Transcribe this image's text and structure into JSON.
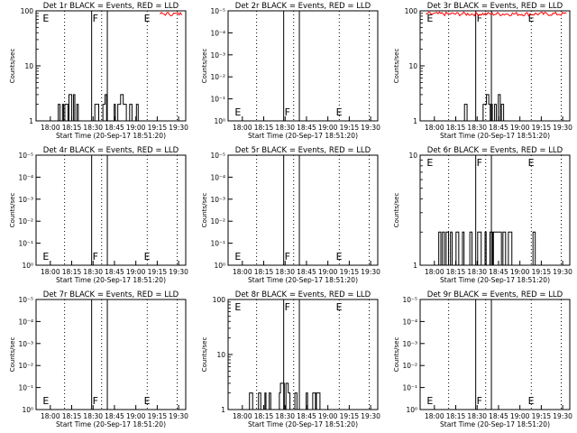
{
  "figure": {
    "ylabel": "Counts/sec",
    "xlabel": "Start Time (20-Sep-17 18:51:20)",
    "x_ticks": [
      "18:00",
      "18:15",
      "18:30",
      "18:45",
      "19:00",
      "19:15",
      "19:30"
    ],
    "event_markers": [
      {
        "label": "E",
        "time": "17:54"
      },
      {
        "label": "F",
        "time": "18:29"
      },
      {
        "label": "E",
        "time": "19:05"
      }
    ],
    "dotted_lines": [
      "18:10",
      "18:36",
      "19:08",
      "19:29"
    ],
    "solid_lines": [
      "18:29",
      "18:40"
    ],
    "colors": {
      "events": "#000000",
      "lld": "#ff0000"
    }
  },
  "chart_data": [
    {
      "type": "line",
      "title": "Det 1r BLACK = Events, RED = LLD",
      "scale": "log",
      "ylim": [
        1,
        100
      ],
      "y_ticks": [
        "1",
        "10",
        "100"
      ],
      "events_level": [
        1,
        3
      ],
      "lld_level": 95,
      "events_span": [
        "18:00",
        "19:02"
      ],
      "lld_span": [
        "19:17",
        "19:33"
      ]
    },
    {
      "type": "line",
      "title": "Det 2r BLACK = Events, RED = LLD",
      "scale": "empty",
      "y_ticks": [
        "10⁰",
        "10⁻¹",
        "10⁻²",
        "10⁻³",
        "10⁻⁴",
        "10⁻⁵"
      ]
    },
    {
      "type": "line",
      "title": "Det 3r BLACK = Events, RED = LLD",
      "scale": "log",
      "ylim": [
        1,
        100
      ],
      "y_ticks": [
        "1",
        "10",
        "100"
      ],
      "events_level": [
        1,
        3
      ],
      "lld_level": 95,
      "events_span": [
        "18:19",
        "18:50"
      ],
      "lld_span": [
        "17:54",
        "19:33"
      ]
    },
    {
      "type": "line",
      "title": "Det 4r BLACK = Events, RED = LLD",
      "scale": "empty",
      "y_ticks": [
        "10⁰",
        "10⁻¹",
        "10⁻²",
        "10⁻³",
        "10⁻⁴",
        "10⁻⁵"
      ]
    },
    {
      "type": "line",
      "title": "Det 5r BLACK = Events, RED = LLD",
      "scale": "empty",
      "y_ticks": [
        "10⁰",
        "10⁻¹",
        "10⁻²",
        "10⁻³",
        "10⁻⁴",
        "10⁻⁵"
      ]
    },
    {
      "type": "line",
      "title": "Det 6r BLACK = Events, RED = LLD",
      "scale": "log",
      "ylim": [
        1,
        10
      ],
      "y_ticks": [
        "1",
        "10"
      ],
      "events_level": [
        1,
        2
      ],
      "events_span": [
        "18:00",
        "19:13"
      ]
    },
    {
      "type": "line",
      "title": "Det 7r BLACK = Events, RED = LLD",
      "scale": "empty",
      "y_ticks": [
        "10⁰",
        "10⁻¹",
        "10⁻²",
        "10⁻³",
        "10⁻⁴",
        "10⁻⁵"
      ]
    },
    {
      "type": "line",
      "title": "Det 8r BLACK = Events, RED = LLD",
      "scale": "log",
      "ylim": [
        1,
        100
      ],
      "y_ticks": [
        "1",
        "10",
        "100"
      ],
      "events_level": [
        1,
        3
      ],
      "events_span": [
        "18:05",
        "18:58"
      ]
    },
    {
      "type": "line",
      "title": "Det 9r BLACK = Events, RED = LLD",
      "scale": "empty",
      "y_ticks": [
        "10⁰",
        "10⁻¹",
        "10⁻²",
        "10⁻³",
        "10⁻⁴",
        "10⁻⁵"
      ]
    }
  ]
}
